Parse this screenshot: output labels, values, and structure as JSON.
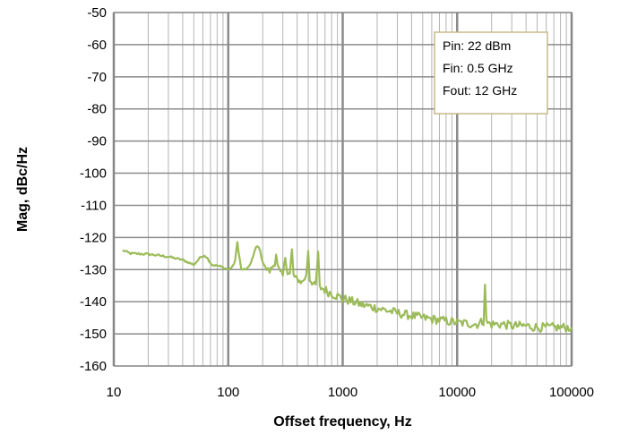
{
  "chart_data": {
    "type": "line",
    "title": "",
    "xlabel": "Offset frequency, Hz",
    "ylabel": "Mag, dBc/Hz",
    "x_scale": "log",
    "xlim": [
      10,
      100000
    ],
    "ylim": [
      -160,
      -50
    ],
    "x_ticks": [
      "10",
      "100",
      "1000",
      "10000",
      "100000"
    ],
    "y_ticks": [
      "-50",
      "-60",
      "-70",
      "-80",
      "-90",
      "-100",
      "-110",
      "-120",
      "-130",
      "-140",
      "-150",
      "-160"
    ],
    "grid": true,
    "legend_position": "top-right",
    "annotation_lines": [
      "Pin:  22 dBm",
      "Fin:  0.5 GHz",
      "Fout:  12 GHz"
    ],
    "series": [
      {
        "name": "",
        "color": "#9bbb59",
        "x": [
          12,
          14,
          20,
          30,
          40,
          50,
          58,
          62,
          66,
          72,
          85,
          100,
          110,
          115,
          120,
          125,
          130,
          140,
          150,
          165,
          175,
          185,
          195,
          210,
          230,
          255,
          262,
          270,
          285,
          300,
          315,
          330,
          345,
          360,
          372,
          380,
          400,
          440,
          480,
          500,
          515,
          540,
          580,
          610,
          630,
          680,
          750,
          1000,
          1500,
          2000,
          3000,
          5000,
          8000,
          10000,
          15000,
          17000,
          17500,
          18000,
          20000,
          25000,
          30000,
          40000,
          50000,
          70000,
          100000
        ],
        "y": [
          -124,
          -125,
          -125.2,
          -126,
          -127,
          -128.5,
          -126,
          -125.5,
          -126.5,
          -128.5,
          -129,
          -130,
          -129,
          -127,
          -121.5,
          -126,
          -130,
          -130,
          -129.5,
          -126,
          -123,
          -122.8,
          -126,
          -129.5,
          -130.5,
          -128,
          -125,
          -129,
          -131,
          -132,
          -126,
          -131,
          -131.5,
          -124,
          -131.5,
          -132.5,
          -133,
          -134,
          -132,
          -124,
          -133,
          -134,
          -135,
          -125,
          -135.5,
          -136,
          -137,
          -139,
          -141,
          -142,
          -143.5,
          -145,
          -146,
          -146.5,
          -147,
          -146,
          -134,
          -146.5,
          -147,
          -147,
          -147.5,
          -147.5,
          -148,
          -148,
          -148
        ]
      }
    ]
  }
}
